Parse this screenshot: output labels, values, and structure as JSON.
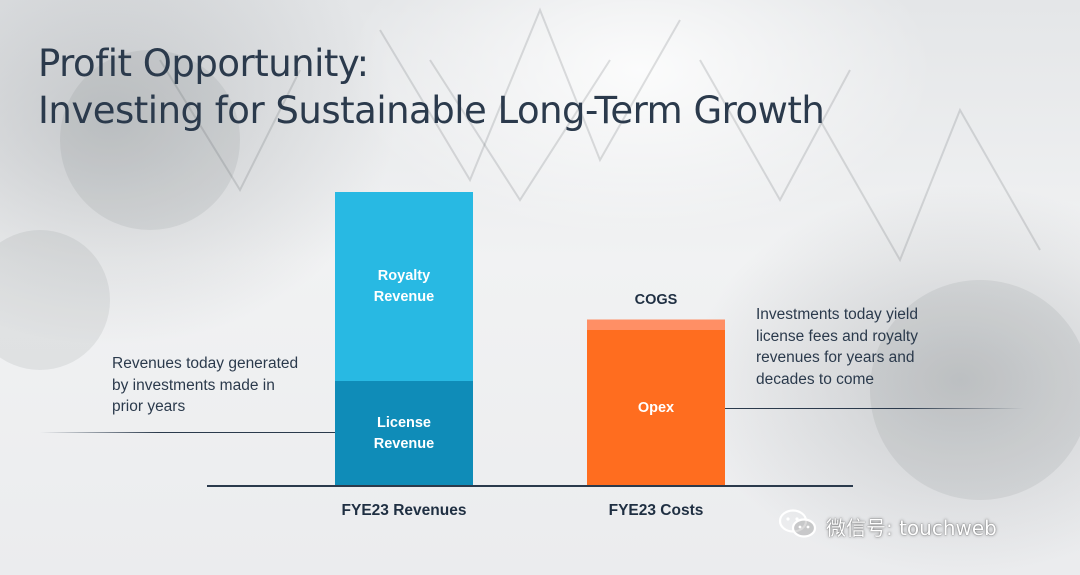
{
  "title": {
    "line1": "Profit Opportunity:",
    "line2": "Investing for Sustainable Long-Term Growth"
  },
  "chart_data": {
    "type": "bar",
    "stacked": true,
    "categories": [
      "FYE23 Revenues",
      "FYE23 Costs"
    ],
    "series": [
      {
        "name": "License Revenue",
        "values": [
          35,
          0
        ],
        "color": "#0f8cb8"
      },
      {
        "name": "Royalty Revenue",
        "values": [
          63,
          0
        ],
        "color": "#28b9e3"
      },
      {
        "name": "Opex",
        "values": [
          0,
          52
        ],
        "color": "#ff6d1f"
      },
      {
        "name": "COGS",
        "values": [
          0,
          3.5
        ],
        "color": "#ff8f65"
      }
    ],
    "segment_labels": {
      "royalty": [
        "Royalty",
        "Revenue"
      ],
      "license": [
        "License",
        "Revenue"
      ],
      "opex": "Opex",
      "cogs": "COGS"
    },
    "ylim": [
      0,
      100
    ],
    "grid": false,
    "legend": "none"
  },
  "annotations": {
    "left": [
      "Revenues today generated",
      "by investments made in",
      "prior years"
    ],
    "right": [
      "Investments today yield",
      "license fees and royalty",
      "revenues for years and",
      "decades to come"
    ]
  },
  "watermark": {
    "text": "微信号: touchweb",
    "icon": "wechat-icon"
  },
  "colors": {
    "title": "#2b3a4c",
    "axis": "#2b3a4c"
  }
}
